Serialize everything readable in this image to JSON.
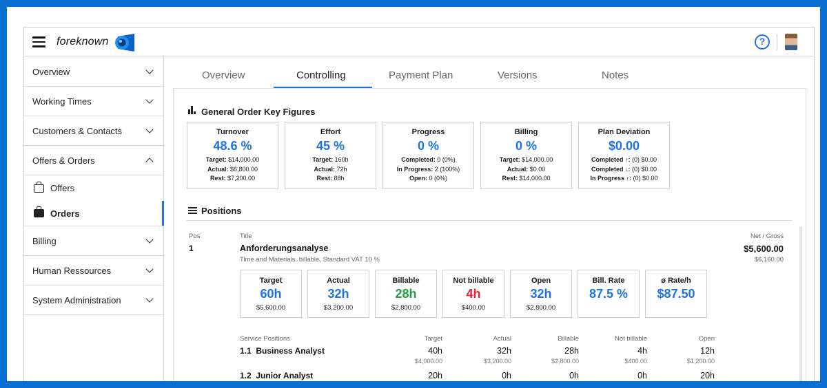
{
  "app": {
    "brand": "foreknown"
  },
  "sidebar": {
    "items": [
      {
        "label": "Overview"
      },
      {
        "label": "Working Times"
      },
      {
        "label": "Customers & Contacts"
      },
      {
        "label": "Offers & Orders"
      },
      {
        "label": "Billing"
      },
      {
        "label": "Human Ressources"
      },
      {
        "label": "System Administration"
      }
    ],
    "sub_items": [
      {
        "label": "Offers"
      },
      {
        "label": "Orders"
      }
    ]
  },
  "tabs": [
    {
      "label": "Overview"
    },
    {
      "label": "Controlling"
    },
    {
      "label": "Payment Plan"
    },
    {
      "label": "Versions"
    },
    {
      "label": "Notes"
    }
  ],
  "key_figures": {
    "title": "General Order Key Figures",
    "cards": [
      {
        "title": "Turnover",
        "value": "48.6 %",
        "lines": [
          [
            "Target:",
            "$14,000.00"
          ],
          [
            "Actual:",
            "$6,800.00"
          ],
          [
            "Rest:",
            "$7,200.00"
          ]
        ]
      },
      {
        "title": "Effort",
        "value": "45 %",
        "lines": [
          [
            "Target:",
            "160h"
          ],
          [
            "Actual:",
            "72h"
          ],
          [
            "Rest:",
            "88h"
          ]
        ]
      },
      {
        "title": "Progress",
        "value": "0 %",
        "lines": [
          [
            "Completed:",
            "0 (0%)"
          ],
          [
            "In Progress:",
            "2 (100%)"
          ],
          [
            "Open:",
            "0 (0%)"
          ]
        ]
      },
      {
        "title": "Billing",
        "value": "0 %",
        "lines": [
          [
            "Target:",
            "$14,000.00"
          ],
          [
            "Actual:",
            "$0.00"
          ],
          [
            "Rest:",
            "$14,000.00"
          ]
        ]
      },
      {
        "title": "Plan Deviation",
        "value": "$0.00",
        "lines": [
          [
            "Completed ↑:",
            "(0) $0.00"
          ],
          [
            "Completed ↓:",
            "(0) $0.00"
          ],
          [
            "In Progress ↑:",
            "(0) $0.00"
          ]
        ]
      }
    ]
  },
  "positions": {
    "title": "Positions",
    "pos_label": "Pos",
    "title_label": "Title",
    "net_gross_label": "Net / Gross",
    "items": [
      {
        "pos": "1",
        "name": "Anforderungsanalyse",
        "description": "Time and Materials, billable, Standard VAT 10 %",
        "net": "$5,600.00",
        "gross": "$6,160.00",
        "metrics": [
          {
            "title": "Target",
            "value": "60h",
            "sub": "$5,600.00",
            "color": "#1a73e8"
          },
          {
            "title": "Actual",
            "value": "32h",
            "sub": "$3,200.00",
            "color": "#1a73e8"
          },
          {
            "title": "Billable",
            "value": "28h",
            "sub": "$2,800.00",
            "color": "#1e9e3f"
          },
          {
            "title": "Not billable",
            "value": "4h",
            "sub": "$400.00",
            "color": "#e0253a"
          },
          {
            "title": "Open",
            "value": "32h",
            "sub": "$2,800.00",
            "color": "#1a73e8"
          },
          {
            "title": "Bill. Rate",
            "value": "87.5 %",
            "sub": "",
            "color": "#1a73e8"
          },
          {
            "title": "ø Rate/h",
            "value": "$87.50",
            "sub": "",
            "color": "#1a73e8"
          }
        ]
      }
    ],
    "service": {
      "label": "Service Positions",
      "columns": [
        "Target",
        "Actual",
        "Billable",
        "Not billable",
        "Open"
      ],
      "rows": [
        {
          "id": "1.1",
          "name": "Business Analyst",
          "values": [
            "40h",
            "32h",
            "28h",
            "4h",
            "12h"
          ],
          "amounts": [
            "$4,000.00",
            "$3,200.00",
            "$2,800.00",
            "$400.00",
            "$1,200.00"
          ]
        },
        {
          "id": "1.2",
          "name": "Junior Analyst",
          "values": [
            "20h",
            "0h",
            "0h",
            "0h",
            "20h"
          ],
          "amounts": []
        }
      ]
    }
  }
}
